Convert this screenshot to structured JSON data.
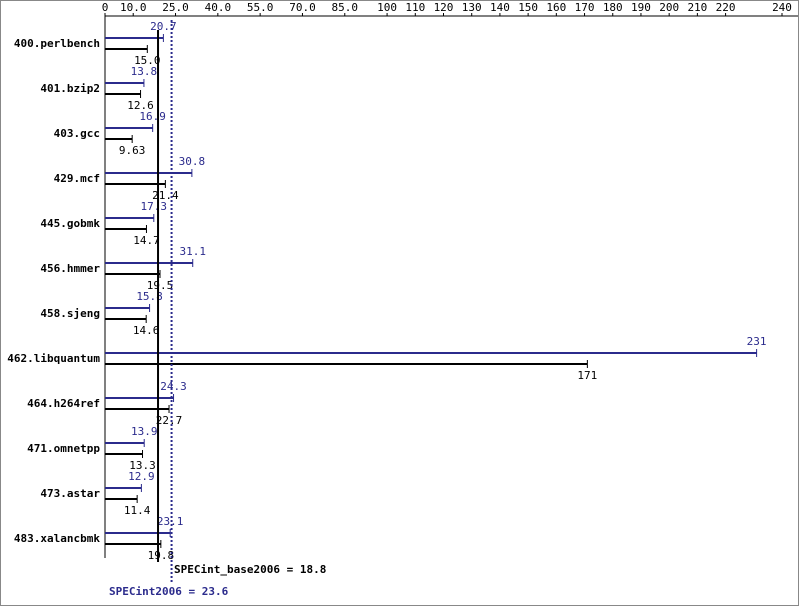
{
  "chart_data": {
    "type": "bar",
    "orientation": "horizontal",
    "categories": [
      "400.perlbench",
      "401.bzip2",
      "403.gcc",
      "429.mcf",
      "445.gobmk",
      "456.hmmer",
      "458.sjeng",
      "462.libquantum",
      "464.h264ref",
      "471.omnetpp",
      "473.astar",
      "483.xalancbmk"
    ],
    "series": [
      {
        "name": "SPECint2006",
        "color": "#2b2b8c",
        "values": [
          20.7,
          13.8,
          16.9,
          30.8,
          17.3,
          31.1,
          15.8,
          231,
          24.3,
          13.9,
          12.9,
          23.1
        ],
        "value_labels": [
          "20.7",
          "13.8",
          "16.9",
          "30.8",
          "17.3",
          "31.1",
          "15.8",
          "231",
          "24.3",
          "13.9",
          "12.9",
          "23.1"
        ]
      },
      {
        "name": "SPECint_base2006",
        "color": "#000000",
        "values": [
          15.0,
          12.6,
          9.63,
          21.4,
          14.7,
          19.5,
          14.6,
          171,
          22.7,
          13.3,
          11.4,
          19.8
        ],
        "value_labels": [
          "15.0",
          "12.6",
          "9.63",
          "21.4",
          "14.7",
          "19.5",
          "14.6",
          "171",
          "22.7",
          "13.3",
          "11.4",
          "19.8"
        ]
      }
    ],
    "xlim": [
      0,
      240
    ],
    "xticks": [
      0,
      {
        "value": 10,
        "label": "10.0"
      },
      {
        "value": 25,
        "label": "25.0"
      },
      {
        "value": 40,
        "label": "40.0"
      },
      {
        "value": 55,
        "label": "55.0"
      },
      {
        "value": 70,
        "label": "70.0"
      },
      {
        "value": 85,
        "label": "85.0"
      },
      100,
      110,
      120,
      130,
      140,
      150,
      160,
      170,
      180,
      190,
      200,
      210,
      220,
      240
    ],
    "reference_lines": [
      {
        "label": "SPECint_base2006 = 18.8",
        "value": 18.8,
        "color": "#000000"
      },
      {
        "label": "SPECint2006 = 23.6",
        "value": 23.6,
        "color": "#2b2b8c"
      }
    ]
  }
}
